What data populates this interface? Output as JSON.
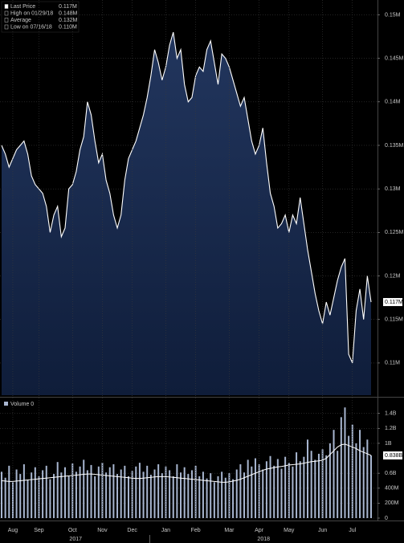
{
  "chart_data": [
    {
      "type": "area",
      "legend": [
        {
          "name": "Last Price",
          "value": 0.117,
          "label": "0.117M"
        },
        {
          "name": "High on 01/29/18",
          "value": 0.148,
          "label": "0.148M"
        },
        {
          "name": "Average",
          "value": 0.132,
          "label": "0.132M"
        },
        {
          "name": "Low on 07/16/18",
          "value": 0.11,
          "label": "0.110M"
        }
      ],
      "series": [
        {
          "name": "Last Price",
          "color": "#ffffff",
          "fill": "#1a2b4e",
          "last_value_label": "0.117M",
          "values": [
            0.135,
            0.134,
            0.1325,
            0.1335,
            0.1345,
            0.135,
            0.1355,
            0.134,
            0.1315,
            0.1305,
            0.13,
            0.1295,
            0.128,
            0.125,
            0.127,
            0.128,
            0.1245,
            0.1255,
            0.13,
            0.1305,
            0.132,
            0.1345,
            0.136,
            0.14,
            0.1385,
            0.1355,
            0.133,
            0.134,
            0.131,
            0.1295,
            0.127,
            0.1255,
            0.127,
            0.131,
            0.1335,
            0.1345,
            0.1355,
            0.137,
            0.1385,
            0.1405,
            0.143,
            0.146,
            0.1445,
            0.1425,
            0.144,
            0.1465,
            0.148,
            0.145,
            0.146,
            0.142,
            0.14,
            0.1405,
            0.143,
            0.144,
            0.1435,
            0.146,
            0.147,
            0.1445,
            0.142,
            0.1455,
            0.145,
            0.144,
            0.1425,
            0.141,
            0.1395,
            0.1405,
            0.138,
            0.1355,
            0.134,
            0.135,
            0.137,
            0.133,
            0.1295,
            0.128,
            0.1255,
            0.126,
            0.127,
            0.125,
            0.127,
            0.126,
            0.129,
            0.126,
            0.123,
            0.1205,
            0.118,
            0.116,
            0.1145,
            0.117,
            0.1155,
            0.1175,
            0.1195,
            0.121,
            0.122,
            0.111,
            0.11,
            0.116,
            0.1185,
            0.115,
            0.12,
            0.117
          ]
        }
      ],
      "ylim": [
        0.1063,
        0.1517
      ],
      "yticks": [
        {
          "value": 0.11,
          "label": "0.11M"
        },
        {
          "value": 0.115,
          "label": "0.115M"
        },
        {
          "value": 0.12,
          "label": "0.12M"
        },
        {
          "value": 0.125,
          "label": "0.125M"
        },
        {
          "value": 0.13,
          "label": "0.13M"
        },
        {
          "value": 0.135,
          "label": "0.135M"
        },
        {
          "value": 0.14,
          "label": "0.14M"
        },
        {
          "value": 0.145,
          "label": "0.145M"
        },
        {
          "value": 0.15,
          "label": "0.15M"
        }
      ],
      "grid": true
    },
    {
      "type": "bar",
      "categories": [
        null,
        null,
        null,
        "Aug",
        null,
        null,
        null,
        null,
        null,
        null,
        "Sep",
        null,
        null,
        null,
        null,
        null,
        null,
        null,
        null,
        "Oct",
        null,
        null,
        null,
        null,
        null,
        null,
        null,
        "Nov",
        null,
        null,
        null,
        null,
        null,
        null,
        null,
        "Dec",
        null,
        null,
        null,
        null,
        null,
        null,
        null,
        null,
        "Jan",
        null,
        null,
        null,
        null,
        null,
        null,
        null,
        "Feb",
        null,
        null,
        null,
        null,
        null,
        null,
        null,
        null,
        "Mar",
        null,
        null,
        null,
        null,
        null,
        null,
        null,
        "Apr",
        null,
        null,
        null,
        null,
        null,
        null,
        null,
        "May",
        null,
        null,
        null,
        null,
        null,
        null,
        null,
        null,
        "Jun",
        null,
        null,
        null,
        null,
        null,
        null,
        null,
        "Jul",
        null,
        null,
        null,
        null,
        null
      ],
      "years": [
        "2017",
        "2018"
      ],
      "series": [
        {
          "name": "Volume 0",
          "color": "#a8b6d0",
          "last_value_label": "0.838B",
          "values": [
            620,
            540,
            700,
            480,
            650,
            590,
            720,
            510,
            610,
            680,
            560,
            640,
            700,
            520,
            590,
            750,
            610,
            680,
            560,
            730,
            620,
            690,
            780,
            640,
            710,
            560,
            690,
            740,
            610,
            680,
            720,
            590,
            650,
            700,
            560,
            630,
            690,
            740,
            620,
            700,
            580,
            650,
            720,
            600,
            690,
            640,
            560,
            720,
            610,
            680,
            590,
            640,
            700,
            560,
            620,
            530,
            600,
            480,
            560,
            620,
            540,
            600,
            520,
            650,
            720,
            610,
            780,
            690,
            800,
            720,
            650,
            760,
            830,
            700,
            790,
            660,
            820,
            740,
            690,
            880,
            760,
            820,
            1050,
            900,
            780,
            860,
            920,
            840,
            1000,
            1180,
            900,
            1350,
            1480,
            1100,
            1250,
            1000,
            1180,
            950,
            1050,
            838
          ]
        },
        {
          "type": "line",
          "color": "#ffffff",
          "values": [
            500,
            495,
            490,
            490,
            495,
            500,
            505,
            510,
            515,
            520,
            525,
            530,
            535,
            540,
            545,
            550,
            555,
            560,
            565,
            570,
            575,
            580,
            585,
            590,
            590,
            585,
            580,
            575,
            570,
            565,
            560,
            555,
            550,
            545,
            540,
            535,
            530,
            530,
            535,
            540,
            545,
            550,
            555,
            555,
            555,
            550,
            545,
            540,
            535,
            530,
            525,
            520,
            515,
            510,
            505,
            500,
            495,
            490,
            485,
            480,
            480,
            485,
            495,
            505,
            520,
            540,
            560,
            580,
            600,
            620,
            640,
            655,
            665,
            675,
            685,
            690,
            700,
            710,
            715,
            720,
            725,
            735,
            745,
            755,
            760,
            765,
            775,
            800,
            850,
            900,
            950,
            980,
            990,
            970,
            950,
            930,
            900,
            880,
            860,
            838
          ]
        }
      ],
      "ylim": [
        0,
        1590
      ],
      "yticks": [
        0,
        {
          "value": 200,
          "label": "200M"
        },
        {
          "value": 400,
          "label": "400M"
        },
        {
          "value": 600,
          "label": "0.6B"
        },
        {
          "value": 1000,
          "label": "1B"
        },
        {
          "value": 1200,
          "label": "1.2B"
        },
        {
          "value": 1400,
          "label": "1.4B"
        }
      ],
      "grid": true
    }
  ]
}
